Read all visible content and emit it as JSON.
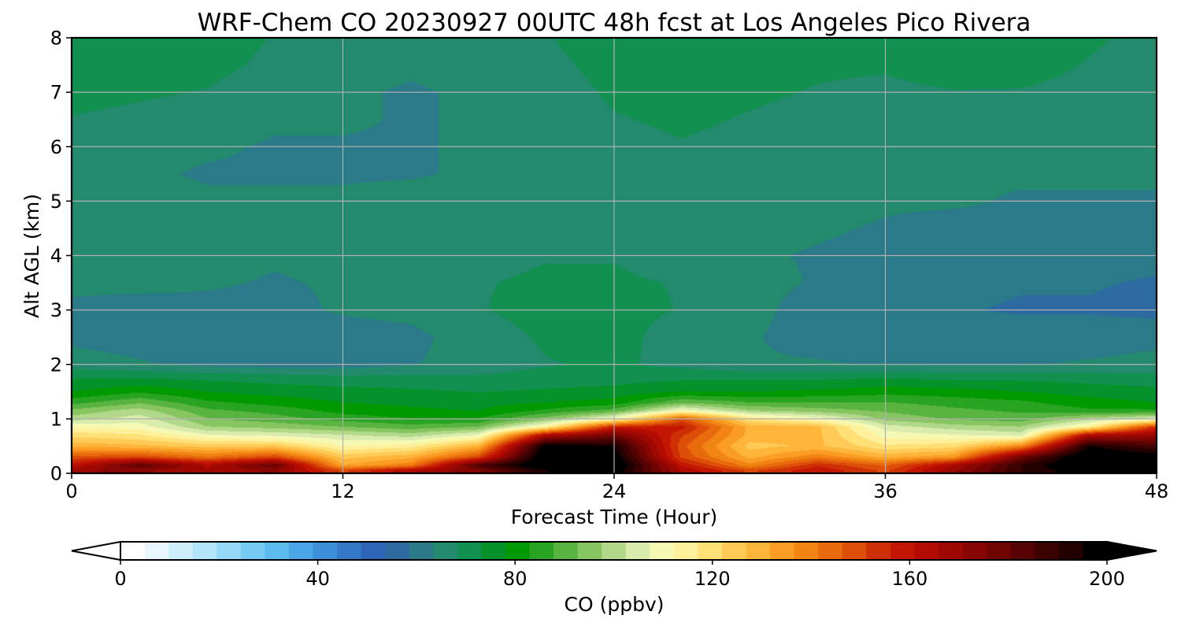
{
  "chart_data": {
    "type": "heatmap",
    "title": "WRF-Chem CO  20230927 00UTC 48h fcst at Los Angeles Pico Rivera",
    "xlabel": "Forecast Time (Hour)",
    "ylabel": "Alt AGL (km)",
    "xlim": [
      0,
      48
    ],
    "ylim": [
      0,
      8
    ],
    "xticks": [
      0,
      12,
      24,
      36,
      48
    ],
    "yticks": [
      0,
      1,
      2,
      3,
      4,
      5,
      6,
      7,
      8
    ],
    "grid": true,
    "variable": "CO",
    "colorbar": {
      "label": "CO  (ppbv)",
      "min": 0,
      "max": 200,
      "ticks": [
        0,
        40,
        80,
        120,
        160,
        200
      ],
      "extend": "both",
      "orientation": "horizontal",
      "colors": [
        "#ffffff",
        "#eaf6fd",
        "#cfeefb",
        "#b3e4fa",
        "#95d8f8",
        "#76cbf5",
        "#5cbcef",
        "#4aa6e6",
        "#3c8fd8",
        "#3478c8",
        "#2f65b6",
        "#2c6aa0",
        "#2a7a8a",
        "#238a6e",
        "#119050",
        "#05922a",
        "#009900",
        "#29a322",
        "#58b340",
        "#86c560",
        "#b2d98a",
        "#d9ecae",
        "#f6f9b4",
        "#fff19c",
        "#ffe076",
        "#ffcb56",
        "#ffb43a",
        "#fb9c25",
        "#f28414",
        "#e86a0c",
        "#dd4e08",
        "#cf2f05",
        "#c51503",
        "#b20b02",
        "#9e0802",
        "#870603",
        "#6f0403",
        "#560202",
        "#3c0101",
        "#220000",
        "#000000"
      ]
    },
    "times_hour": [
      0,
      3,
      6,
      9,
      12,
      15,
      18,
      21,
      24,
      27,
      30,
      33,
      36,
      39,
      42,
      45,
      48
    ],
    "altitudes_km": [
      0.05,
      0.15,
      0.3,
      0.5,
      0.7,
      0.85,
      1.0,
      1.15,
      1.3,
      1.5,
      1.75,
      2.0,
      2.5,
      3.0,
      3.5,
      4.0,
      4.5,
      5.0,
      5.5,
      6.0,
      6.5,
      7.0,
      7.5,
      8.0
    ],
    "co_ppbv": [
      [
        170,
        172,
        166,
        172,
        150,
        165,
        175,
        195,
        200,
        165,
        150,
        160,
        150,
        170,
        190,
        200,
        200
      ],
      [
        160,
        182,
        165,
        180,
        132,
        140,
        185,
        205,
        205,
        160,
        138,
        155,
        145,
        165,
        190,
        205,
        205
      ],
      [
        148,
        150,
        142,
        150,
        125,
        130,
        150,
        205,
        200,
        150,
        130,
        140,
        130,
        135,
        178,
        205,
        200
      ],
      [
        130,
        128,
        125,
        125,
        112,
        115,
        130,
        200,
        195,
        148,
        125,
        128,
        118,
        120,
        138,
        195,
        185
      ],
      [
        120,
        118,
        108,
        106,
        103,
        100,
        108,
        165,
        178,
        152,
        130,
        128,
        110,
        108,
        105,
        165,
        170
      ],
      [
        112,
        110,
        98,
        96,
        93,
        90,
        93,
        115,
        158,
        158,
        130,
        128,
        105,
        100,
        98,
        115,
        155
      ],
      [
        100,
        105,
        93,
        90,
        86,
        83,
        83,
        95,
        110,
        148,
        118,
        110,
        96,
        92,
        90,
        100,
        106
      ],
      [
        94,
        100,
        89,
        86,
        81,
        79,
        78,
        84,
        90,
        110,
        98,
        95,
        92,
        89,
        87,
        84,
        84
      ],
      [
        86,
        92,
        84,
        81,
        78,
        77,
        76,
        78,
        80,
        92,
        88,
        88,
        88,
        86,
        84,
        80,
        78
      ],
      [
        78,
        82,
        78,
        76,
        75,
        74,
        73,
        74,
        75,
        78,
        78,
        79,
        81,
        80,
        78,
        76,
        75
      ],
      [
        73,
        73,
        72,
        71,
        70,
        70,
        69,
        70,
        71,
        72,
        72,
        72,
        73,
        72,
        72,
        71,
        70
      ],
      [
        66,
        64,
        62,
        61,
        61,
        63,
        66,
        68,
        69,
        67,
        64,
        64,
        63,
        63,
        63,
        64,
        65
      ],
      [
        62,
        61,
        60,
        60,
        61,
        62,
        66,
        69,
        70,
        66,
        64,
        61,
        60,
        60,
        61,
        61,
        62
      ],
      [
        62,
        61,
        62,
        62,
        64,
        65,
        68,
        70,
        70,
        68,
        65,
        61,
        60,
        59,
        58,
        58,
        57
      ],
      [
        65,
        65,
        64,
        63,
        64,
        67,
        68,
        69,
        69,
        68,
        65,
        63,
        61,
        60,
        59,
        59,
        58
      ],
      [
        66,
        66,
        65,
        64,
        65,
        66,
        67,
        68,
        68,
        66,
        64,
        63,
        62,
        61,
        61,
        61,
        60
      ],
      [
        66,
        66,
        65,
        65,
        65,
        66,
        67,
        68,
        68,
        66,
        65,
        64,
        63,
        62,
        62,
        62,
        61
      ],
      [
        65,
        65,
        64,
        64,
        64,
        65,
        66,
        67,
        68,
        67,
        66,
        65,
        64,
        64,
        63,
        63,
        63
      ],
      [
        65,
        64,
        63,
        63,
        63,
        63,
        64,
        65,
        67,
        67,
        66,
        65,
        64,
        64,
        64,
        64,
        64
      ],
      [
        66,
        65,
        64,
        63,
        63,
        63,
        64,
        65,
        67,
        68,
        67,
        66,
        64,
        64,
        65,
        65,
        65
      ],
      [
        68,
        67,
        66,
        64,
        64,
        63,
        64,
        66,
        68,
        69,
        68,
        67,
        66,
        66,
        66,
        66,
        66
      ],
      [
        70,
        69,
        68,
        65,
        64,
        63,
        64,
        66,
        69,
        69,
        69,
        68,
        67,
        68,
        68,
        67,
        66
      ],
      [
        72,
        71,
        70,
        67,
        65,
        64,
        65,
        67,
        70,
        70,
        70,
        69,
        69,
        71,
        70,
        68,
        66
      ],
      [
        73,
        72,
        71,
        68,
        66,
        65,
        66,
        68,
        71,
        71,
        70,
        70,
        70,
        72,
        71,
        69,
        67
      ]
    ]
  }
}
